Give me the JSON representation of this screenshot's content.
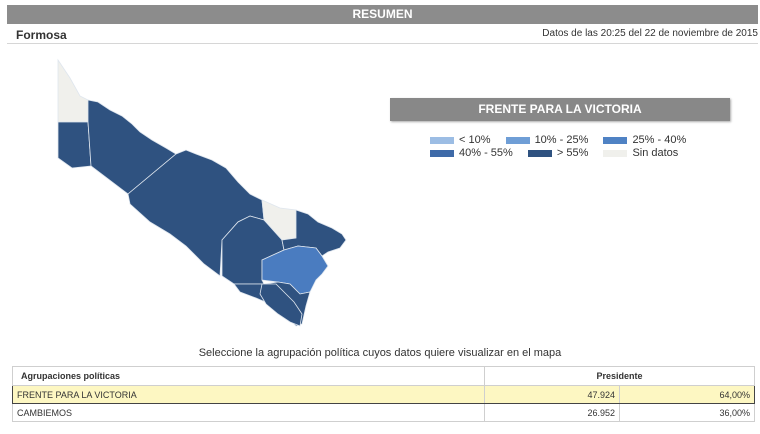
{
  "header": {
    "title": "RESUMEN"
  },
  "subheader": {
    "province": "Formosa",
    "timestamp": "Datos de las 20:25 del 22 de noviembre de 2015"
  },
  "party_panel": {
    "title": "FRENTE PARA LA VICTORIA"
  },
  "legend": {
    "items": [
      {
        "label": "< 10%",
        "color": "#9cbde4"
      },
      {
        "label": "10% - 25%",
        "color": "#6f9ed6"
      },
      {
        "label": "25% - 40%",
        "color": "#4f82c4"
      },
      {
        "label": "40% - 55%",
        "color": "#3e6aa8"
      },
      {
        "label": "> 55%",
        "color": "#2f5280"
      },
      {
        "label": "Sin datos",
        "color": "#f0f0ec"
      }
    ]
  },
  "map": {
    "colors": {
      "high": "#2f5280",
      "mid": "#4a7cc0",
      "none": "#f0f0ec",
      "border": "#dfe6ee"
    }
  },
  "instruction": "Seleccione la agrupación política cuyos datos quiere visualizar en el mapa",
  "table": {
    "headers": {
      "party": "Agrupaciones políticas",
      "president": "Presidente"
    },
    "rows": [
      {
        "party": "FRENTE PARA LA VICTORIA",
        "votes": "47.924",
        "pct": "64,00%",
        "selected": true
      },
      {
        "party": "CAMBIEMOS",
        "votes": "26.952",
        "pct": "36,00%",
        "selected": false
      }
    ]
  }
}
